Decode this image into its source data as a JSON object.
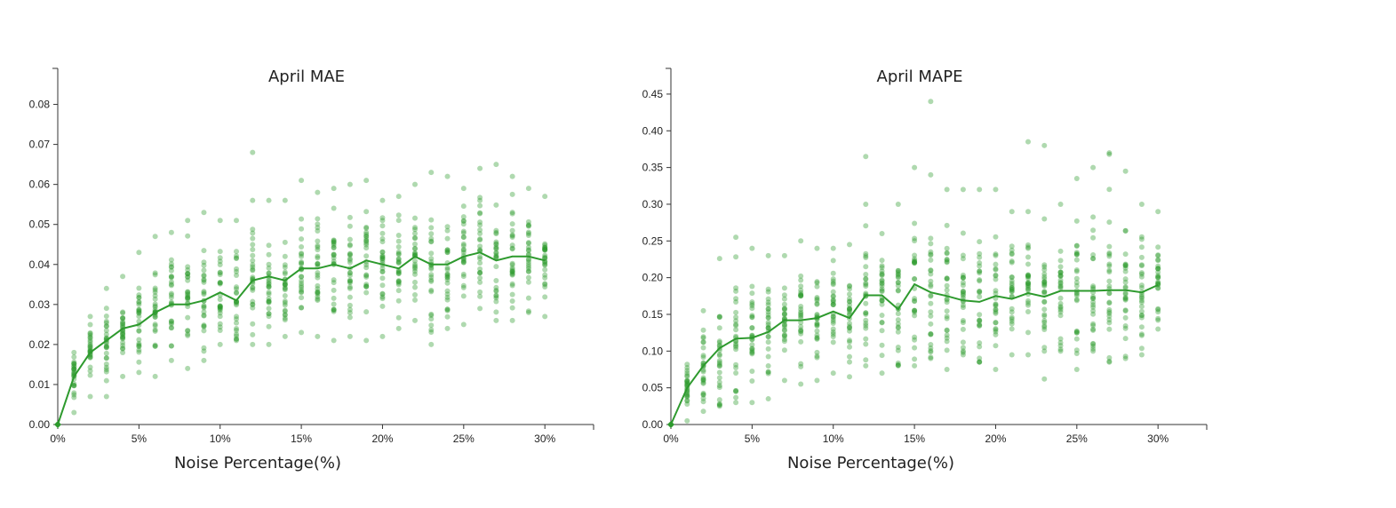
{
  "chart_data": [
    {
      "type": "scatter",
      "title": "April MAE",
      "xlabel": "Noise Percentage(%)",
      "ylabel": "",
      "xlim": [
        0,
        33
      ],
      "ylim": [
        0,
        0.089
      ],
      "x_ticks": [
        0,
        5,
        10,
        15,
        20,
        25,
        30
      ],
      "x_tick_labels": [
        "0%",
        "5%",
        "10%",
        "15%",
        "20%",
        "25%",
        "30%"
      ],
      "y_ticks": [
        0,
        0.01,
        0.02,
        0.03,
        0.04,
        0.05,
        0.06,
        0.07,
        0.08
      ],
      "y_tick_labels": [
        "0.00",
        "0.01",
        "0.02",
        "0.03",
        "0.04",
        "0.05",
        "0.06",
        "0.07",
        "0.08"
      ],
      "grid": false,
      "legend": "none",
      "color": "#2e9a2e",
      "series": [
        {
          "kind": "line",
          "x": [
            0,
            1,
            2,
            3,
            4,
            5,
            6,
            7,
            8,
            9,
            10,
            11,
            12,
            13,
            14,
            15,
            16,
            17,
            18,
            19,
            20,
            21,
            22,
            23,
            24,
            25,
            26,
            27,
            28,
            29,
            30
          ],
          "values": [
            0.0,
            0.012,
            0.018,
            0.021,
            0.024,
            0.025,
            0.028,
            0.03,
            0.03,
            0.031,
            0.033,
            0.031,
            0.036,
            0.037,
            0.036,
            0.039,
            0.039,
            0.04,
            0.039,
            0.041,
            0.04,
            0.039,
            0.042,
            0.04,
            0.04,
            0.042,
            0.043,
            0.041,
            0.042,
            0.042,
            0.041
          ]
        },
        {
          "kind": "points",
          "ranges": [
            [
              0.0,
              0.0
            ],
            [
              0.003,
              0.018
            ],
            [
              0.007,
              0.027
            ],
            [
              0.007,
              0.034
            ],
            [
              0.012,
              0.037
            ],
            [
              0.013,
              0.043
            ],
            [
              0.012,
              0.047
            ],
            [
              0.016,
              0.048
            ],
            [
              0.014,
              0.051
            ],
            [
              0.016,
              0.053
            ],
            [
              0.02,
              0.051
            ],
            [
              0.021,
              0.051
            ],
            [
              0.02,
              0.056
            ],
            [
              0.02,
              0.056
            ],
            [
              0.022,
              0.056
            ],
            [
              0.023,
              0.061
            ],
            [
              0.022,
              0.058
            ],
            [
              0.021,
              0.059
            ],
            [
              0.022,
              0.06
            ],
            [
              0.021,
              0.061
            ],
            [
              0.022,
              0.056
            ],
            [
              0.024,
              0.057
            ],
            [
              0.026,
              0.06
            ],
            [
              0.02,
              0.063
            ],
            [
              0.024,
              0.062
            ],
            [
              0.025,
              0.059
            ],
            [
              0.029,
              0.064
            ],
            [
              0.026,
              0.065
            ],
            [
              0.026,
              0.062
            ],
            [
              0.028,
              0.059
            ],
            [
              0.027,
              0.057
            ]
          ],
          "outliers": [
            [
              12,
              0.068
            ]
          ]
        }
      ]
    },
    {
      "type": "scatter",
      "title": "April MAPE",
      "xlabel": "Noise Percentage(%)",
      "ylabel": "",
      "xlim": [
        0,
        33
      ],
      "ylim": [
        0,
        0.485
      ],
      "x_ticks": [
        0,
        5,
        10,
        15,
        20,
        25,
        30
      ],
      "x_tick_labels": [
        "0%",
        "5%",
        "10%",
        "15%",
        "20%",
        "25%",
        "30%"
      ],
      "y_ticks": [
        0,
        0.05,
        0.1,
        0.15,
        0.2,
        0.25,
        0.3,
        0.35,
        0.4,
        0.45
      ],
      "y_tick_labels": [
        "0.00",
        "0.05",
        "0.10",
        "0.15",
        "0.20",
        "0.25",
        "0.30",
        "0.35",
        "0.40",
        "0.45"
      ],
      "grid": false,
      "legend": "none",
      "color": "#2e9a2e",
      "series": [
        {
          "kind": "line",
          "x": [
            0,
            1,
            2,
            3,
            4,
            5,
            6,
            7,
            8,
            9,
            10,
            11,
            12,
            13,
            14,
            15,
            16,
            17,
            18,
            19,
            20,
            21,
            22,
            23,
            24,
            25,
            26,
            27,
            28,
            29,
            30
          ],
          "values": [
            0.0,
            0.05,
            0.08,
            0.104,
            0.117,
            0.118,
            0.126,
            0.142,
            0.142,
            0.145,
            0.154,
            0.145,
            0.176,
            0.176,
            0.157,
            0.191,
            0.18,
            0.175,
            0.169,
            0.167,
            0.175,
            0.171,
            0.179,
            0.174,
            0.182,
            0.182,
            0.182,
            0.183,
            0.183,
            0.18,
            0.19
          ]
        },
        {
          "kind": "points",
          "ranges": [
            [
              0.0,
              0.0
            ],
            [
              0.005,
              0.082
            ],
            [
              0.018,
              0.155
            ],
            [
              0.025,
              0.226
            ],
            [
              0.03,
              0.255
            ],
            [
              0.03,
              0.24
            ],
            [
              0.035,
              0.23
            ],
            [
              0.06,
              0.23
            ],
            [
              0.055,
              0.25
            ],
            [
              0.06,
              0.24
            ],
            [
              0.07,
              0.24
            ],
            [
              0.065,
              0.245
            ],
            [
              0.08,
              0.3
            ],
            [
              0.07,
              0.26
            ],
            [
              0.08,
              0.3
            ],
            [
              0.08,
              0.35
            ],
            [
              0.09,
              0.34
            ],
            [
              0.075,
              0.32
            ],
            [
              0.095,
              0.32
            ],
            [
              0.085,
              0.32
            ],
            [
              0.075,
              0.32
            ],
            [
              0.095,
              0.29
            ],
            [
              0.095,
              0.29
            ],
            [
              0.1,
              0.28
            ],
            [
              0.1,
              0.3
            ],
            [
              0.075,
              0.335
            ],
            [
              0.1,
              0.35
            ],
            [
              0.085,
              0.37
            ],
            [
              0.09,
              0.345
            ],
            [
              0.095,
              0.3
            ],
            [
              0.13,
              0.29
            ]
          ],
          "outliers": [
            [
              16,
              0.44
            ],
            [
              22,
              0.385
            ],
            [
              23,
              0.38
            ],
            [
              12,
              0.365
            ],
            [
              23,
              0.062
            ],
            [
              27,
              0.368
            ]
          ]
        }
      ]
    }
  ]
}
